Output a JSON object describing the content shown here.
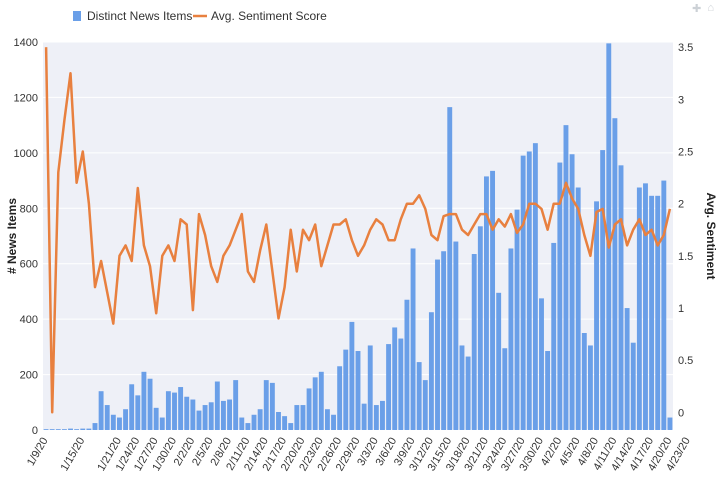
{
  "colors": {
    "bars": "#6a9fe8",
    "line": "#e8803f",
    "plot_bg": "#eef0f7",
    "grid": "#ffffff"
  },
  "modebar": {
    "icons": [
      "zoom-icon",
      "reset-icon"
    ]
  },
  "chart_data": {
    "type": "bar+line",
    "legend_position": "top-left",
    "grid": true,
    "xlabel": "",
    "ylabel": "# News Items",
    "y2label": "Avg. Sentiment",
    "ylim": [
      0,
      1400
    ],
    "y2lim": [
      -0.17,
      3.55
    ],
    "yticks": [
      0,
      200,
      400,
      600,
      800,
      1000,
      1200,
      1400
    ],
    "y2ticks": [
      0,
      0.5,
      1,
      1.5,
      2,
      2.5,
      3,
      3.5
    ],
    "y2tick_labels": [
      "0",
      "0.5",
      "1",
      "1.5",
      "2",
      "2.5",
      "3",
      "3.5"
    ],
    "xtick_labels": [
      "1/9/20",
      "1/15/20",
      "1/21/20",
      "1/24/20",
      "1/27/20",
      "1/30/20",
      "2/2/20",
      "2/5/20",
      "2/8/20",
      "2/11/20",
      "2/14/20",
      "2/17/20",
      "2/20/20",
      "2/23/20",
      "2/26/20",
      "2/29/20",
      "3/3/20",
      "3/6/20",
      "3/9/20",
      "3/12/20",
      "3/15/20",
      "3/18/20",
      "3/21/20",
      "3/24/20",
      "3/27/20",
      "3/30/20",
      "4/2/20",
      "4/5/20",
      "4/8/20",
      "4/11/20",
      "4/14/20",
      "4/17/20",
      "4/20/20",
      "4/23/20"
    ],
    "xtick_days": [
      0,
      6,
      12,
      15,
      18,
      21,
      24,
      27,
      30,
      33,
      36,
      39,
      42,
      45,
      48,
      51,
      54,
      57,
      60,
      63,
      66,
      69,
      72,
      75,
      78,
      81,
      84,
      87,
      90,
      93,
      96,
      99,
      102,
      105
    ],
    "series": [
      {
        "name": "Distinct News Items",
        "type": "bar",
        "values": [
          3,
          3,
          3,
          3,
          5,
          3,
          5,
          5,
          25,
          140,
          90,
          55,
          45,
          75,
          165,
          125,
          210,
          185,
          80,
          45,
          140,
          135,
          155,
          120,
          110,
          70,
          90,
          100,
          175,
          105,
          110,
          180,
          45,
          25,
          55,
          75,
          180,
          170,
          65,
          50,
          25,
          90,
          90,
          150,
          190,
          210,
          75,
          55,
          230,
          290,
          390,
          285,
          95,
          305,
          90,
          105,
          310,
          370,
          330,
          470,
          655,
          245,
          180,
          425,
          615,
          645,
          1165,
          680,
          305,
          265,
          635,
          735,
          915,
          935,
          495,
          295,
          655,
          795,
          990,
          1005,
          1035,
          475,
          285,
          675,
          965,
          1100,
          995,
          875,
          350,
          305,
          825,
          1010,
          1395,
          1125,
          955,
          440,
          315,
          875,
          890,
          845,
          845,
          900,
          45
        ]
      },
      {
        "name": "Avg. Sentiment Score",
        "type": "line",
        "values": [
          3.5,
          0.0,
          2.3,
          2.8,
          3.25,
          2.2,
          2.5,
          2.0,
          1.2,
          1.45,
          1.15,
          0.85,
          1.5,
          1.6,
          1.45,
          2.15,
          1.6,
          1.4,
          0.95,
          1.5,
          1.6,
          1.45,
          1.85,
          1.8,
          0.98,
          1.9,
          1.7,
          1.4,
          1.25,
          1.5,
          1.6,
          1.75,
          1.9,
          1.35,
          1.25,
          1.55,
          1.8,
          1.35,
          0.9,
          1.2,
          1.75,
          1.35,
          1.75,
          1.65,
          1.8,
          1.4,
          1.6,
          1.8,
          1.8,
          1.85,
          1.65,
          1.5,
          1.6,
          1.75,
          1.85,
          1.8,
          1.65,
          1.65,
          1.85,
          2.0,
          2.0,
          2.08,
          1.95,
          1.7,
          1.65,
          1.88,
          1.9,
          1.9,
          1.75,
          1.7,
          1.8,
          1.9,
          1.9,
          1.75,
          1.85,
          1.78,
          1.9,
          1.72,
          1.8,
          2.0,
          2.0,
          1.95,
          1.75,
          2.0,
          2.0,
          2.2,
          2.05,
          1.95,
          1.7,
          1.5,
          1.92,
          1.95,
          1.58,
          1.8,
          1.85,
          1.6,
          1.75,
          1.85,
          1.7,
          1.75,
          1.6,
          1.7,
          1.95
        ]
      }
    ]
  }
}
